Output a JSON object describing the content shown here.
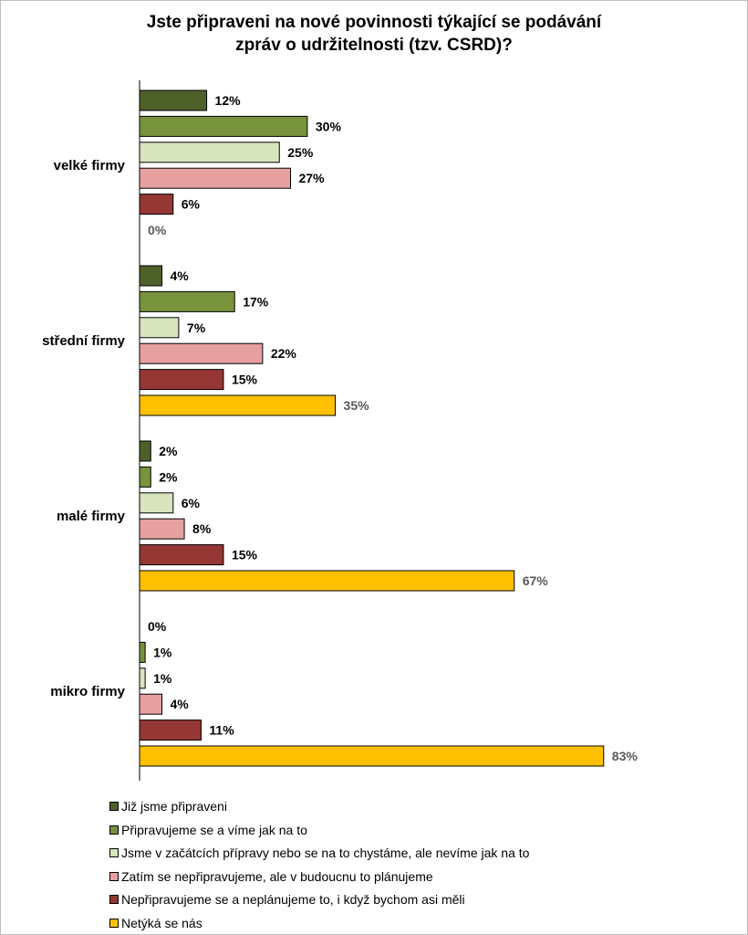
{
  "chart_data": {
    "type": "bar",
    "orientation": "horizontal",
    "title": [
      "Jste připraveni na nové povinnosti týkající se podávání",
      "zpráv o udržitelnosti (tzv. CSRD)?"
    ],
    "categories": [
      "velké firmy",
      "střední firmy",
      "malé firmy",
      "mikro firmy"
    ],
    "series": [
      {
        "name": "Již jsme připraveni",
        "color": "#4e6128",
        "values": [
          12,
          4,
          2,
          0
        ]
      },
      {
        "name": "Připravujeme se a víme jak na to",
        "color": "#77933c",
        "values": [
          30,
          17,
          2,
          1
        ]
      },
      {
        "name": "Jsme v začátcích přípravy nebo se na to chystáme, ale nevíme jak na to",
        "color": "#d7e4bd",
        "values": [
          25,
          7,
          6,
          1
        ]
      },
      {
        "name": "Zatím se nepřipravujeme, ale v budoucnu to plánujeme",
        "color": "#e6a0a0",
        "values": [
          27,
          22,
          8,
          4
        ]
      },
      {
        "name": "Nepřipravujeme se a neplánujeme to, i když bychom asi měli",
        "color": "#953735",
        "values": [
          6,
          15,
          15,
          11
        ]
      },
      {
        "name": "Netýká se nás",
        "color": "#ffc000",
        "values": [
          0,
          35,
          67,
          83
        ]
      }
    ],
    "value_suffix": "%",
    "xlim": [
      0,
      100
    ],
    "grid": false,
    "legend_position": "bottom",
    "label_color_default": "#000000",
    "label_color_last_series": "#595959"
  }
}
